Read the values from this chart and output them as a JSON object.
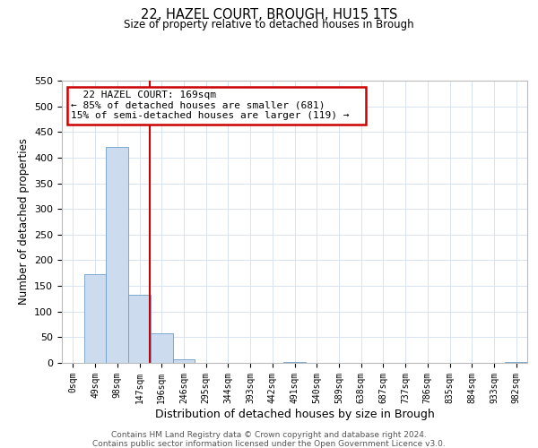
{
  "title": "22, HAZEL COURT, BROUGH, HU15 1TS",
  "subtitle": "Size of property relative to detached houses in Brough",
  "xlabel": "Distribution of detached houses by size in Brough",
  "ylabel": "Number of detached properties",
  "bar_labels": [
    "0sqm",
    "49sqm",
    "98sqm",
    "147sqm",
    "196sqm",
    "246sqm",
    "295sqm",
    "344sqm",
    "393sqm",
    "442sqm",
    "491sqm",
    "540sqm",
    "589sqm",
    "638sqm",
    "687sqm",
    "737sqm",
    "786sqm",
    "835sqm",
    "884sqm",
    "933sqm",
    "982sqm"
  ],
  "bar_values": [
    0,
    173,
    421,
    133,
    57,
    7,
    0,
    0,
    0,
    0,
    2,
    0,
    0,
    0,
    0,
    0,
    0,
    0,
    0,
    0,
    2
  ],
  "bar_color": "#ccdcee",
  "bar_edge_color": "#6a9fc8",
  "vline_color": "#cc0000",
  "ylim": [
    0,
    550
  ],
  "yticks": [
    0,
    50,
    100,
    150,
    200,
    250,
    300,
    350,
    400,
    450,
    500,
    550
  ],
  "annotation_title": "22 HAZEL COURT: 169sqm",
  "annotation_line1": "← 85% of detached houses are smaller (681)",
  "annotation_line2": "15% of semi-detached houses are larger (119) →",
  "annotation_box_color": "#ffffff",
  "annotation_box_edge": "#cc0000",
  "footer_line1": "Contains HM Land Registry data © Crown copyright and database right 2024.",
  "footer_line2": "Contains public sector information licensed under the Open Government Licence v3.0.",
  "grid_color": "#d8e4f0"
}
